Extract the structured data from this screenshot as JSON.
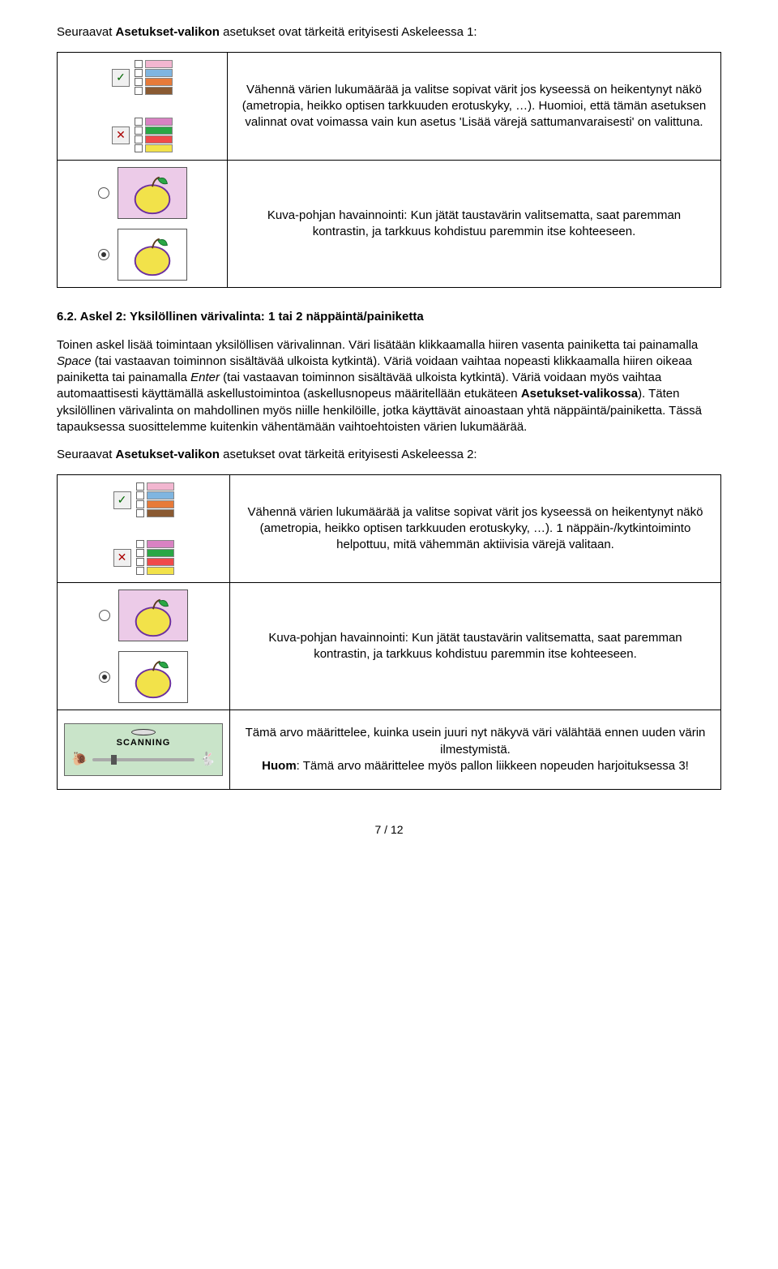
{
  "intro1": {
    "prefix": "Seuraavat ",
    "bold": "Asetukset-valikon",
    "suffix": " asetukset ovat tärkeitä erityisesti Askeleessa 1:"
  },
  "table1": {
    "row1": "Vähennä värien lukumäärää ja valitse sopivat värit jos kyseessä on heikentynyt näkö (ametropia, heikko optisen tarkkuuden erotuskyky, …). Huomioi, että tämän asetuksen valinnat ovat voimassa vain kun asetus 'Lisää värejä sattumanvaraisesti' on valittuna.",
    "row2": "Kuva-pohjan havainnointi: Kun jätät taustavärin valitsematta, saat paremman kontrastin, ja tarkkuus kohdistuu paremmin itse kohteeseen."
  },
  "section_head": "6.2. Askel 2: Yksilöllinen värivalinta: 1 tai 2 näppäintä/painiketta",
  "body": {
    "p1_a": "Toinen askel lisää toimintaan yksilöllisen värivalinnan. Väri lisätään klikkaamalla hiiren vasenta painiketta tai painamalla ",
    "p1_i1": "Space",
    "p1_b": " (tai vastaavan toiminnon sisältävää ulkoista kytkintä). Väriä voidaan vaihtaa nopeasti klikkaamalla hiiren oikeaa painiketta tai painamalla ",
    "p1_i2": "Enter",
    "p1_c": " (tai vastaavan toiminnon sisältävää ulkoista kytkintä). Väriä voidaan myös vaihtaa automaattisesti käyttämällä askellustoimintoa (askellusnopeus määritellään etukäteen ",
    "p1_bold": "Asetukset-valikossa",
    "p1_d": "). Täten yksilöllinen värivalinta on mahdollinen myös niille henkilöille, jotka käyttävät ainoastaan yhtä näppäintä/painiketta. Tässä tapauksessa suosittelemme kuitenkin vähentämään vaihtoehtoisten värien lukumäärää."
  },
  "intro2": {
    "prefix": "Seuraavat ",
    "bold": "Asetukset-valikon",
    "suffix": " asetukset ovat tärkeitä erityisesti Askeleessa 2:"
  },
  "table2": {
    "row1": "Vähennä värien lukumäärää ja valitse sopivat värit jos kyseessä on heikentynyt näkö (ametropia, heikko optisen tarkkuuden erotuskyky, …). 1 näppäin-/kytkintoiminto helpottuu, mitä vähemmän aktiivisia värejä valitaan.",
    "row2": "Kuva-pohjan havainnointi: Kun jätät taustavärin valitsematta, saat paremman kontrastin, ja tarkkuus kohdistuu paremmin itse kohteeseen.",
    "row3_l1": "Tämä arvo määrittelee, kuinka usein juuri nyt näkyvä väri välähtää ennen uuden värin ilmestymistä.",
    "row3_bold": "Huom",
    "row3_l2": ": Tämä arvo määrittelee myös pallon liikkeen nopeuden harjoituksessa 3!"
  },
  "palette_colors": [
    "#f2b6d0",
    "#7fb5e0",
    "#e77a39",
    "#8a5a32",
    "#d982c3",
    "#2aa745",
    "#f04a4a",
    "#f2e24a"
  ],
  "scanning_label": "SCANNING",
  "page_num": "7 / 12"
}
